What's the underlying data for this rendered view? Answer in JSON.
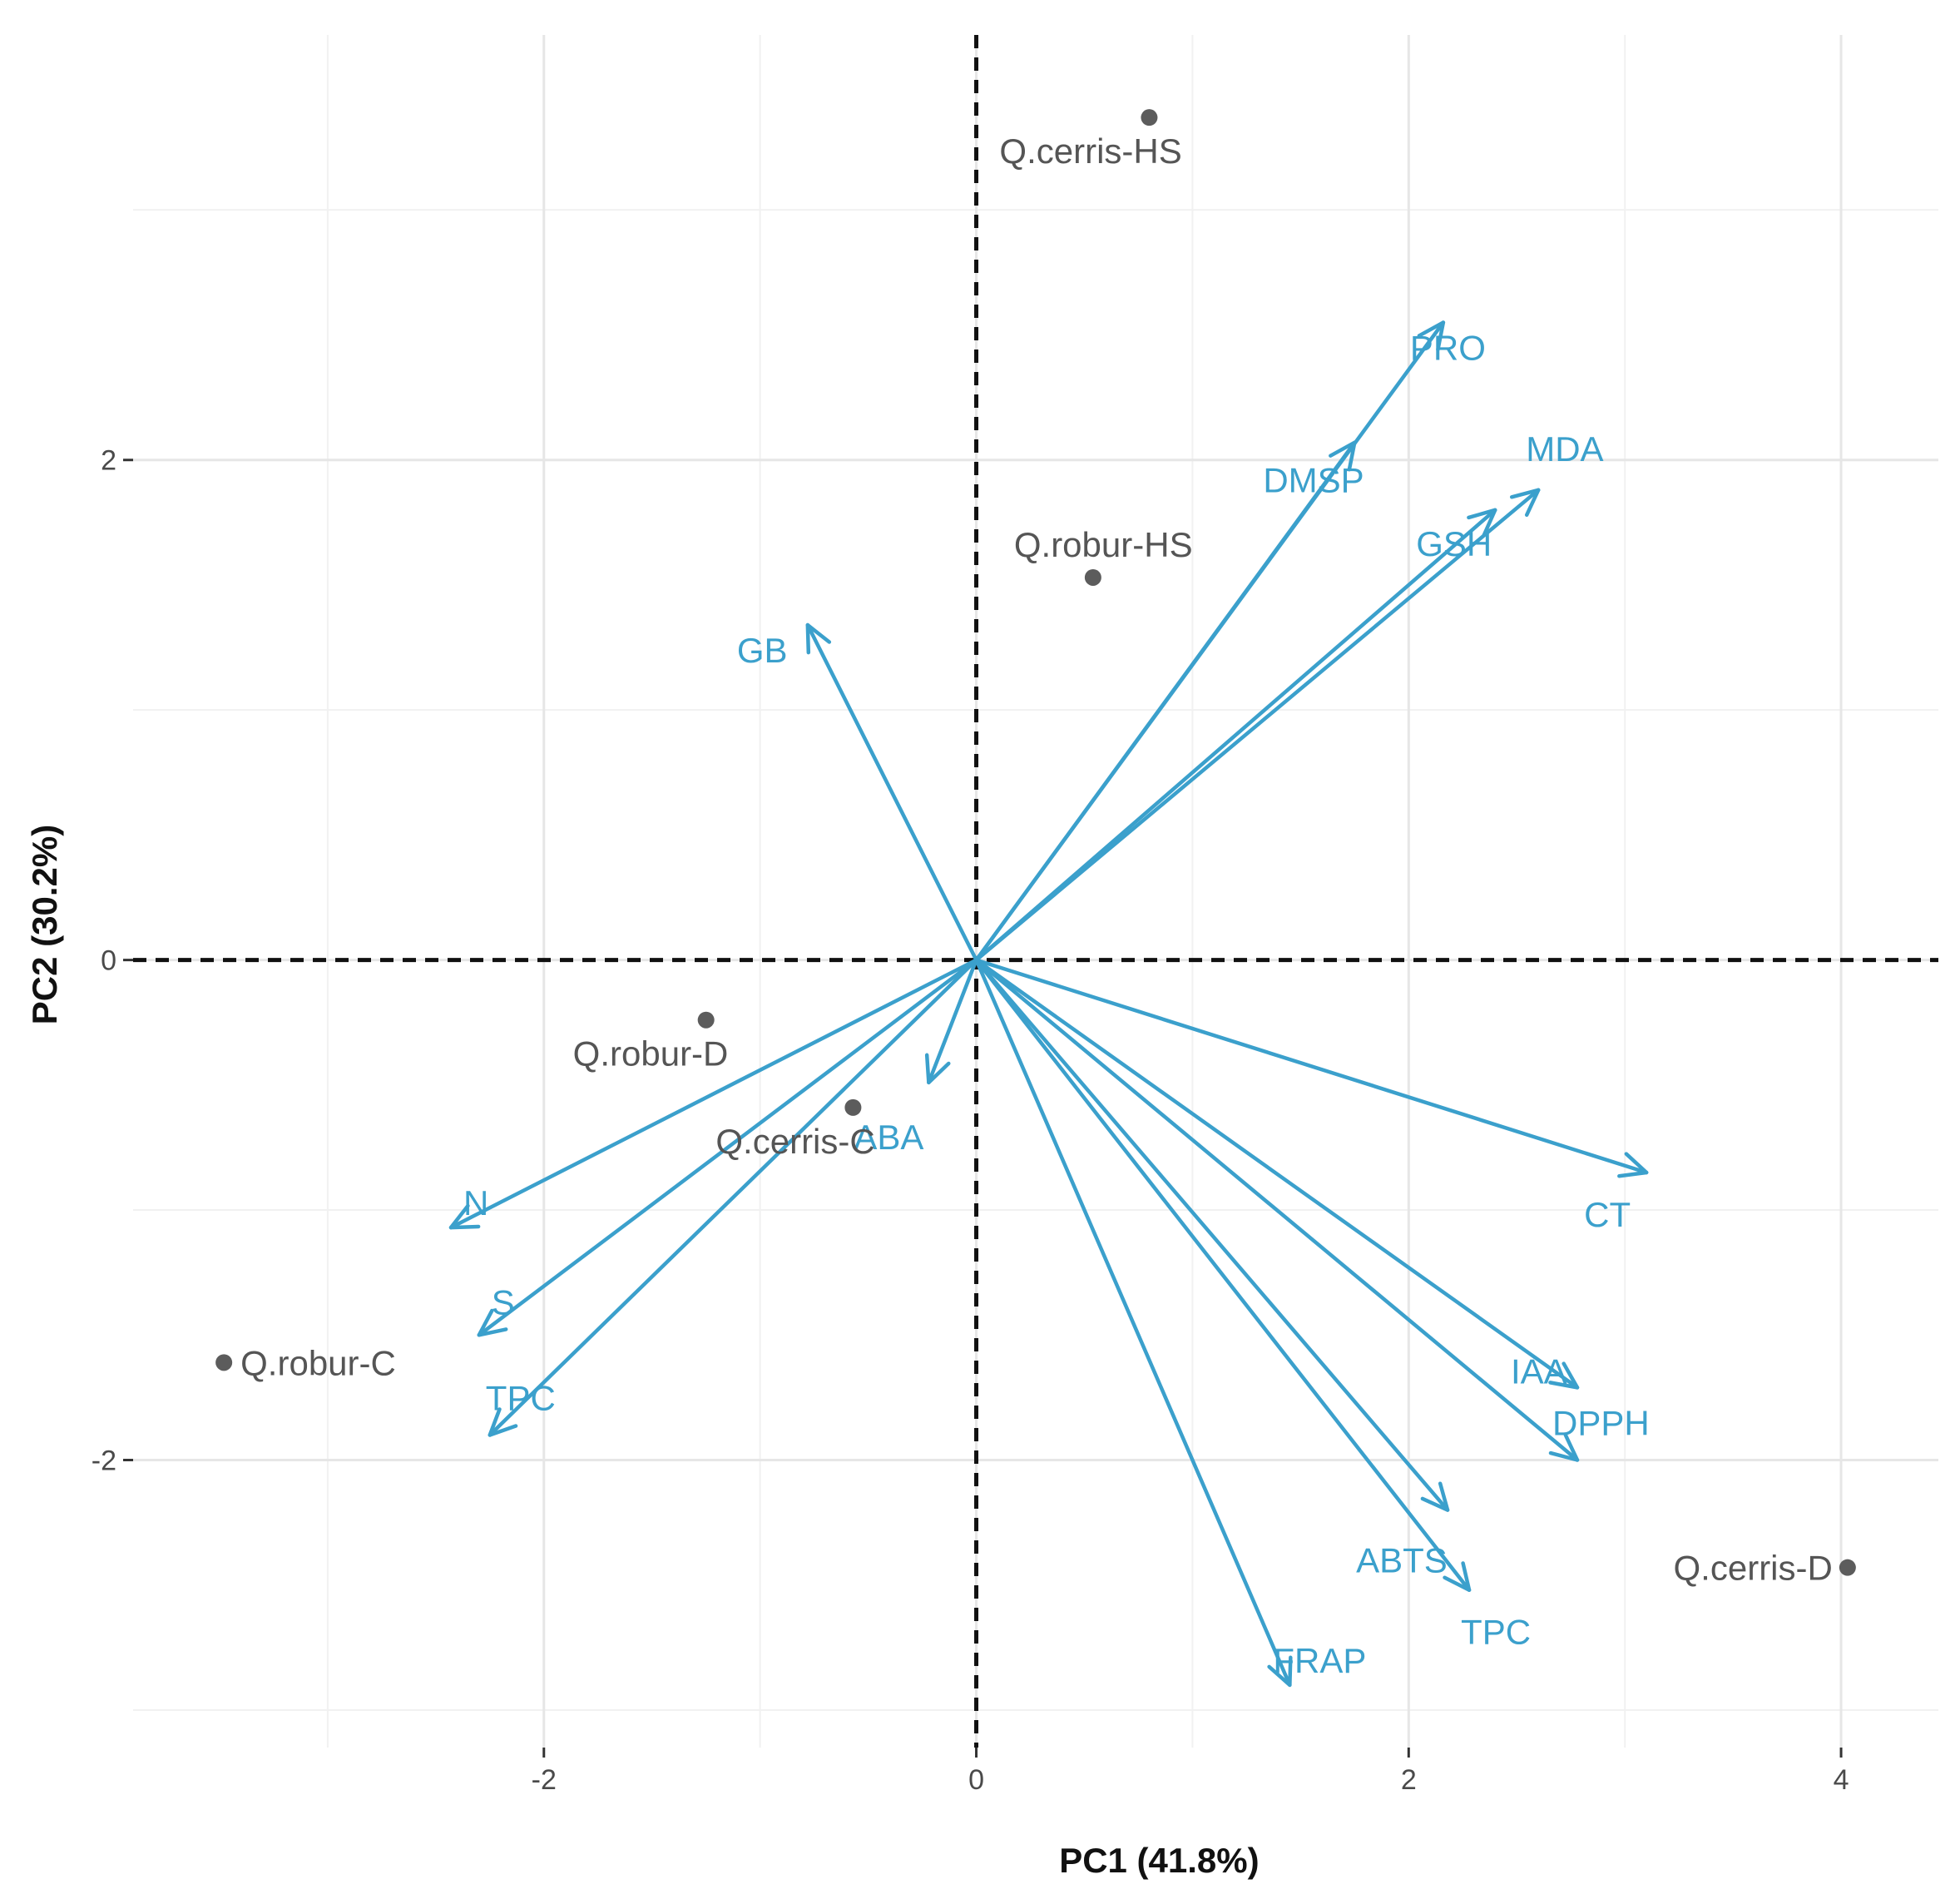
{
  "chart_data": {
    "type": "scatter",
    "subtype": "pca-biplot",
    "xlabel": "PC1 (41.8%)",
    "ylabel": "PC2 (30.2%)",
    "xlim": [
      -3.9,
      4.45
    ],
    "ylim": [
      -3.15,
      3.7
    ],
    "x_ticks": [
      -2,
      0,
      2,
      4
    ],
    "y_ticks": [
      -2,
      0,
      2
    ],
    "x_tick_labels": [
      "-2",
      "0",
      "2",
      "4"
    ],
    "y_tick_labels": [
      "-2",
      "0",
      "2"
    ],
    "grid": true,
    "reference_lines": {
      "x": 0,
      "y": 0,
      "style": "dashed"
    },
    "samples": [
      {
        "name": "Q.cerris-HS",
        "x": 0.8,
        "y": 3.37
      },
      {
        "name": "Q.robur-HS",
        "x": 0.54,
        "y": 1.53
      },
      {
        "name": "Q.robur-D",
        "x": -1.25,
        "y": -0.24
      },
      {
        "name": "Q.cerris-C",
        "x": -0.57,
        "y": -0.59
      },
      {
        "name": "Q.robur-C",
        "x": -3.48,
        "y": -1.61
      },
      {
        "name": "Q.cerris-D",
        "x": 4.03,
        "y": -2.43
      }
    ],
    "loadings": [
      {
        "name": "PRO",
        "x": 2.16,
        "y": 2.55
      },
      {
        "name": "DMSP",
        "x": 1.75,
        "y": 2.07
      },
      {
        "name": "MDA",
        "x": 2.6,
        "y": 1.88
      },
      {
        "name": "GSH",
        "x": 2.4,
        "y": 1.8
      },
      {
        "name": "GB",
        "x": -0.78,
        "y": 1.34
      },
      {
        "name": "ABA",
        "x": -0.22,
        "y": -0.49
      },
      {
        "name": "N",
        "x": -2.43,
        "y": -1.07
      },
      {
        "name": "S",
        "x": -2.3,
        "y": -1.5
      },
      {
        "name": "TPC",
        "x": -2.25,
        "y": -1.9
      },
      {
        "name": "CT",
        "x": 3.1,
        "y": -0.85
      },
      {
        "name": "IAA",
        "x": 2.78,
        "y": -1.71
      },
      {
        "name": "DPPH",
        "x": 2.78,
        "y": -2.0
      },
      {
        "name": "ABTS",
        "x": 2.18,
        "y": -2.2
      },
      {
        "name": "TPC",
        "x": 2.28,
        "y": -2.52
      },
      {
        "name": "FRAP",
        "x": 1.45,
        "y": -2.9
      }
    ],
    "sample_color": "#5c5c5c",
    "loading_color": "#3ba0cc"
  }
}
